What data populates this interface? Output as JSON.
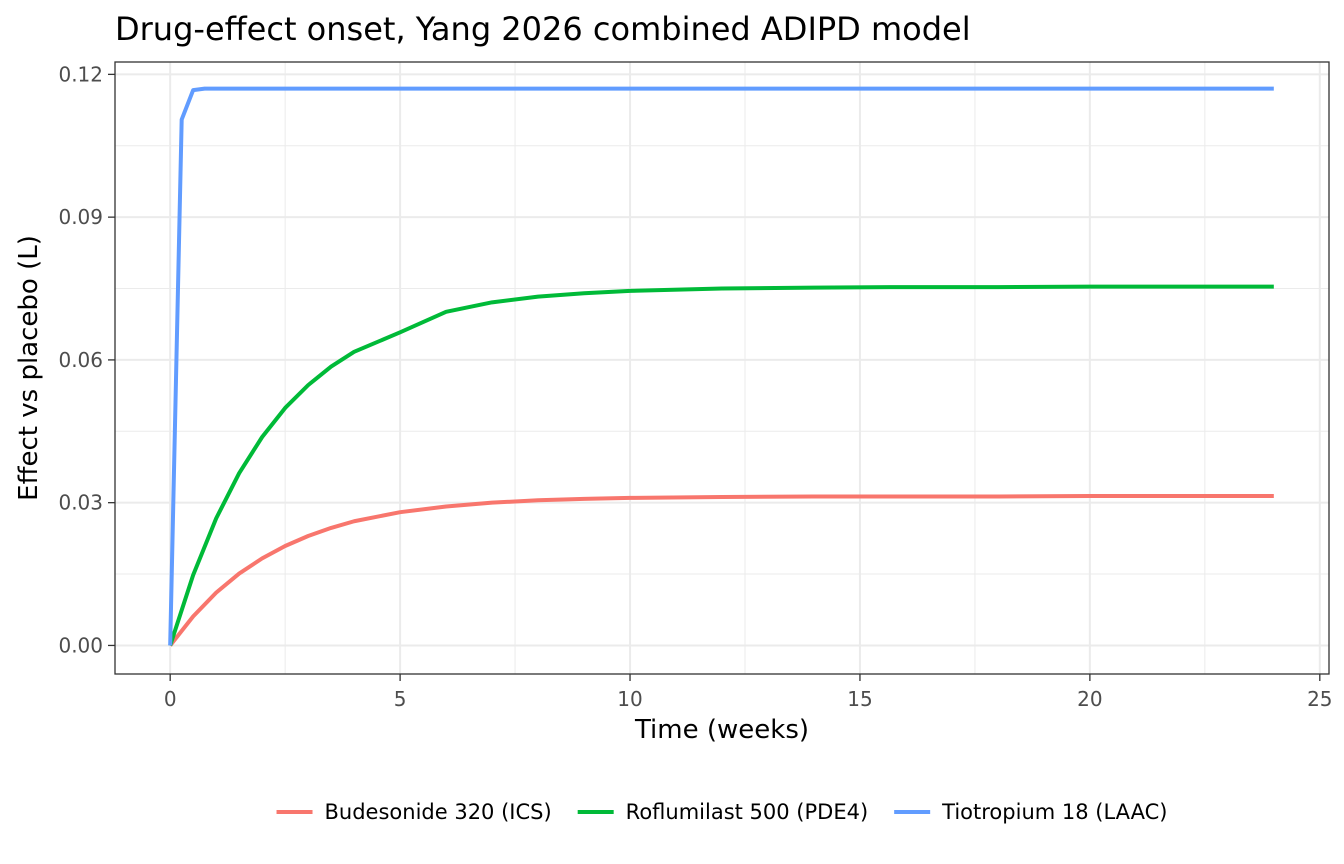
{
  "chart_data": {
    "type": "line",
    "title": "Drug-effect onset, Yang 2026 combined ADIPD model",
    "xlabel": "Time (weeks)",
    "ylabel": "Effect vs placebo (L)",
    "xlim": [
      -1.2,
      25.2
    ],
    "ylim": [
      -0.006,
      0.1226
    ],
    "x_ticks": [
      0,
      5,
      10,
      15,
      20,
      25
    ],
    "x_tick_labels": [
      "0",
      "5",
      "10",
      "15",
      "20",
      "25"
    ],
    "y_ticks": [
      0,
      0.03,
      0.06,
      0.09,
      0.12
    ],
    "y_tick_labels": [
      "0.00",
      "0.03",
      "0.06",
      "0.09",
      "0.12"
    ],
    "grid": true,
    "legend_position": "bottom",
    "series": [
      {
        "name": "Budesonide 320 (ICS)",
        "color": "#F8766D",
        "x": [
          0,
          0.5,
          1,
          1.5,
          2,
          2.5,
          3,
          3.5,
          4,
          5,
          6,
          7,
          8,
          9,
          10,
          12,
          14,
          16,
          18,
          20,
          22,
          24
        ],
        "y": [
          0,
          0.0061,
          0.0111,
          0.0151,
          0.0183,
          0.0209,
          0.023,
          0.0247,
          0.0261,
          0.028,
          0.0292,
          0.03,
          0.0305,
          0.0308,
          0.031,
          0.0312,
          0.0313,
          0.0313,
          0.0313,
          0.0314,
          0.0314,
          0.0314
        ]
      },
      {
        "name": "Roflumilast 500 (PDE4)",
        "color": "#00BA38",
        "x": [
          0,
          0.5,
          1,
          1.5,
          2,
          2.5,
          3,
          3.5,
          4,
          5,
          6,
          7,
          8,
          9,
          10,
          12,
          14,
          16,
          18,
          20,
          22,
          24
        ],
        "y": [
          0,
          0.0148,
          0.0267,
          0.0362,
          0.0438,
          0.0499,
          0.0547,
          0.0586,
          0.0617,
          0.0658,
          0.0701,
          0.0721,
          0.0733,
          0.074,
          0.0745,
          0.075,
          0.0752,
          0.0753,
          0.0753,
          0.0754,
          0.0754,
          0.0754
        ]
      },
      {
        "name": "Tiotropium 18 (LAAC)",
        "color": "#619CFF",
        "x": [
          0,
          0.25,
          0.5,
          0.75,
          1,
          2,
          4,
          8,
          12,
          16,
          20,
          24
        ],
        "y": [
          0,
          0.1105,
          0.1167,
          0.117,
          0.117,
          0.117,
          0.117,
          0.117,
          0.117,
          0.117,
          0.117,
          0.117
        ]
      }
    ]
  }
}
